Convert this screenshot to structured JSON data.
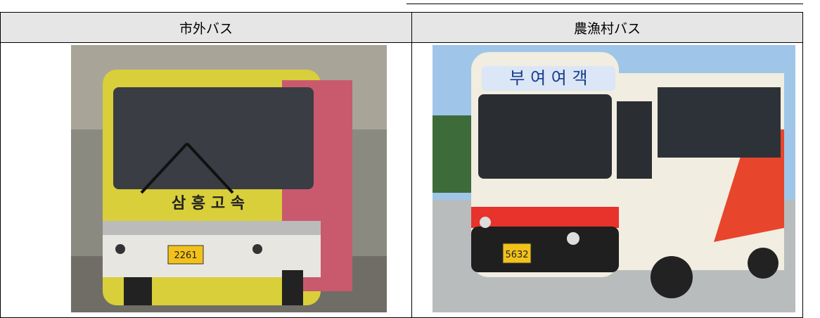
{
  "table": {
    "header": [
      "市外バス",
      "農漁村バス"
    ]
  },
  "images": [
    {
      "sign": "삼 흥 고 속",
      "plate": "2261"
    },
    {
      "sign": "부 여 여 객",
      "plate": "5632"
    }
  ]
}
